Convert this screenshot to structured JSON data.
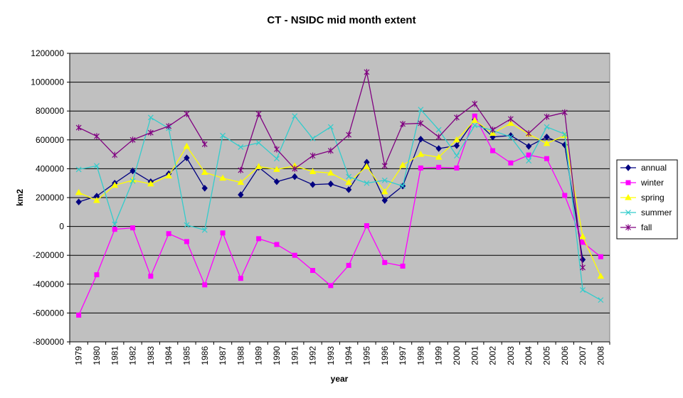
{
  "chart_data": {
    "type": "line",
    "title": "CT - NSIDC mid month extent",
    "xlabel": "year",
    "ylabel": "km2",
    "ylim": [
      -800000,
      1200000
    ],
    "yticks": [
      -800000,
      -600000,
      -400000,
      -200000,
      0,
      200000,
      400000,
      600000,
      800000,
      1000000,
      1200000
    ],
    "ytick_labels": [
      "-800000",
      "-600000",
      "-400000",
      "-200000",
      "0",
      "200000",
      "400000",
      "600000",
      "800000",
      "1000000",
      "1200000"
    ],
    "grid": "horizontal",
    "legend_position": "right",
    "categories": [
      "1979",
      "1980",
      "1981",
      "1982",
      "1983",
      "1984",
      "1985",
      "1986",
      "1987",
      "1988",
      "1989",
      "1990",
      "1991",
      "1992",
      "1993",
      "1994",
      "1995",
      "1996",
      "1997",
      "1998",
      "1999",
      "2000",
      "2001",
      "2002",
      "2003",
      "2004",
      "2005",
      "2006",
      "2007",
      "2008"
    ],
    "series": [
      {
        "name": "annual",
        "color": "#000080",
        "marker": "diamond",
        "values": [
          170000,
          210000,
          300000,
          385000,
          310000,
          365000,
          475000,
          265000,
          null,
          220000,
          410000,
          310000,
          345000,
          290000,
          295000,
          255000,
          445000,
          180000,
          280000,
          605000,
          540000,
          560000,
          740000,
          620000,
          630000,
          555000,
          620000,
          565000,
          -230000,
          null
        ]
      },
      {
        "name": "winter",
        "color": "#ff00ff",
        "marker": "square",
        "values": [
          -615000,
          -335000,
          -20000,
          -10000,
          -345000,
          -50000,
          -105000,
          -405000,
          -45000,
          -360000,
          -85000,
          -125000,
          -200000,
          -305000,
          -410000,
          -270000,
          5000,
          -250000,
          -275000,
          405000,
          410000,
          405000,
          765000,
          525000,
          440000,
          495000,
          470000,
          215000,
          -110000,
          -210000
        ]
      },
      {
        "name": "spring",
        "color": "#ffff00",
        "marker": "triangle",
        "values": [
          235000,
          180000,
          285000,
          320000,
          295000,
          350000,
          555000,
          375000,
          335000,
          305000,
          415000,
          395000,
          420000,
          380000,
          370000,
          305000,
          415000,
          240000,
          425000,
          500000,
          480000,
          600000,
          735000,
          645000,
          715000,
          640000,
          575000,
          630000,
          -70000,
          -345000
        ]
      },
      {
        "name": "summer",
        "color": "#33cccc",
        "marker": "x",
        "values": [
          395000,
          420000,
          15000,
          315000,
          755000,
          680000,
          10000,
          -25000,
          630000,
          550000,
          580000,
          470000,
          765000,
          610000,
          690000,
          345000,
          300000,
          320000,
          280000,
          810000,
          670000,
          490000,
          700000,
          665000,
          620000,
          455000,
          690000,
          640000,
          -440000,
          -510000
        ]
      },
      {
        "name": "fall",
        "color": "#800080",
        "marker": "star",
        "values": [
          685000,
          625000,
          495000,
          600000,
          650000,
          695000,
          780000,
          570000,
          null,
          390000,
          780000,
          535000,
          400000,
          490000,
          525000,
          635000,
          1070000,
          420000,
          710000,
          715000,
          620000,
          755000,
          850000,
          670000,
          745000,
          645000,
          760000,
          790000,
          -285000,
          null
        ]
      }
    ]
  }
}
